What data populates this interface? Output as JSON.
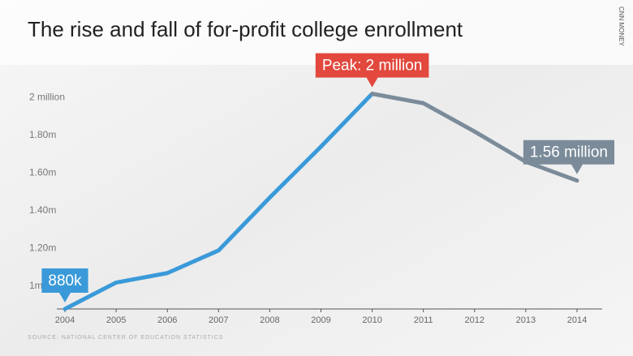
{
  "chart_data": {
    "type": "line",
    "title": "The rise and fall of for-profit college enrollment",
    "source": "SOURCE: NATIONAL CENTER OF EDUCATION STATISTICS",
    "credit": "CNN MONEY",
    "categories": [
      "2004",
      "2005",
      "2006",
      "2007",
      "2008",
      "2009",
      "2010",
      "2011",
      "2012",
      "2013",
      "2014"
    ],
    "values": [
      0.88,
      1.02,
      1.07,
      1.19,
      1.47,
      1.74,
      2.02,
      1.97,
      1.82,
      1.66,
      1.56
    ],
    "line_colors": [
      "#3a9ad9",
      "#7b8b9a"
    ],
    "ylim": [
      0.88,
      2.1
    ],
    "yticks": [
      {
        "value": 1,
        "label": "1m"
      },
      {
        "value": 1.2,
        "label": "1.20m"
      },
      {
        "value": 1.4,
        "label": "1.40m"
      },
      {
        "value": 1.6,
        "label": "1.60m"
      },
      {
        "value": 1.8,
        "label": "1.80m"
      },
      {
        "value": 2,
        "label": "2 million"
      }
    ],
    "annotations": [
      {
        "text": "880k",
        "at": "2004",
        "color": "#3a9ad9"
      },
      {
        "text": "Peak: 2 million",
        "at": "2010",
        "color": "#e2483d"
      },
      {
        "text": "1.56 million",
        "at": "2014",
        "color": "#7b8b9a"
      }
    ]
  }
}
